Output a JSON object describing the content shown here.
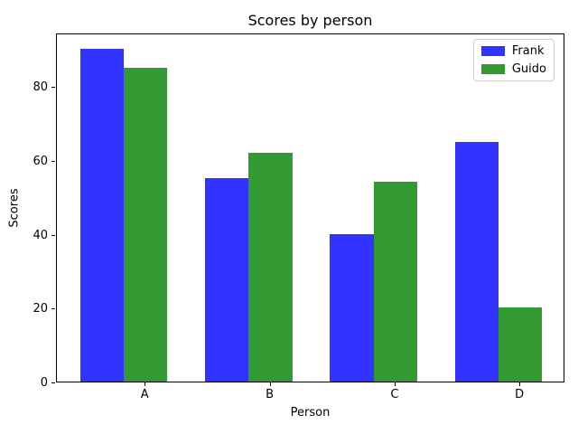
{
  "chart_data": {
    "type": "bar",
    "title": "Scores by person",
    "xlabel": "Person",
    "ylabel": "Scores",
    "categories": [
      "A",
      "B",
      "C",
      "D"
    ],
    "series": [
      {
        "name": "Frank",
        "color": "#3333ff",
        "values": [
          90,
          55,
          40,
          65
        ]
      },
      {
        "name": "Guido",
        "color": "#339933",
        "values": [
          85,
          62,
          54,
          20
        ]
      }
    ],
    "ylim": [
      0,
      94.5
    ],
    "yticks": [
      0,
      20,
      40,
      60,
      80
    ],
    "bar_width": 0.35,
    "grid": false,
    "legend_position": "upper right",
    "axis_color": "#000000",
    "background_color": "#ffffff"
  }
}
